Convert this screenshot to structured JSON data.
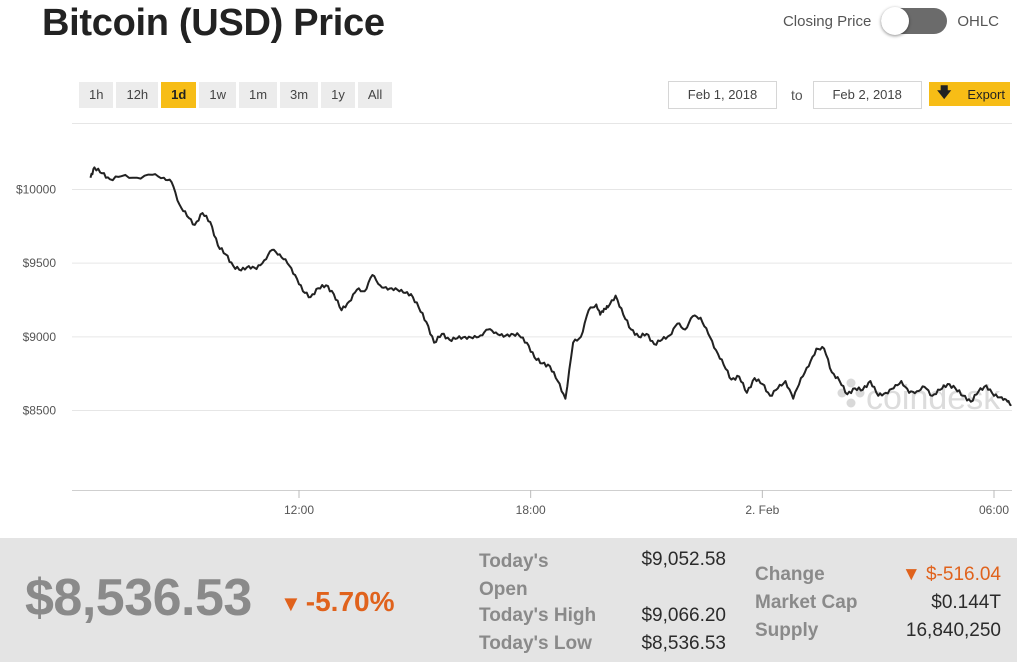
{
  "page": {
    "title": "Bitcoin (USD) Price",
    "toggle": {
      "left_label": "Closing Price",
      "right_label": "OHLC"
    },
    "ranges": [
      "1h",
      "12h",
      "1d",
      "1w",
      "1m",
      "3m",
      "1y",
      "All"
    ],
    "active_range": "1d",
    "date_from": "Feb 1, 2018",
    "date_to_label": "to",
    "date_to": "Feb 2, 2018",
    "export_label": "Export",
    "watermark": "coindesk"
  },
  "colors": {
    "accent": "#f7bd16",
    "negative": "#e0621c",
    "line": "#222222",
    "toggle": "#6b6b6b"
  },
  "stats": {
    "price": "$8,536.53",
    "change_pct": "-5.70%",
    "today_open_label": "Today's Open",
    "today_open": "$9,052.58",
    "today_high_label": "Today's High",
    "today_high": "$9,066.20",
    "today_low_label": "Today's Low",
    "today_low": "$8,536.53",
    "change_label": "Change",
    "change": "$-516.04",
    "market_cap_label": "Market Cap",
    "market_cap": "$0.144T",
    "supply_label": "Supply",
    "supply": "16,840,250"
  },
  "chart_data": {
    "type": "line",
    "title": "Bitcoin (USD) Price",
    "xlabel": "",
    "ylabel": "",
    "x_unit": "hour",
    "x_ticks": [
      {
        "x": 12,
        "label": "12:00"
      },
      {
        "x": 18,
        "label": "18:00"
      },
      {
        "x": 24,
        "label": "2. Feb"
      },
      {
        "x": 30,
        "label": "06:00"
      }
    ],
    "y_ticks": [
      {
        "y": 8500,
        "label": "$8500"
      },
      {
        "y": 9000,
        "label": "$9000"
      },
      {
        "y": 9500,
        "label": "$9500"
      },
      {
        "y": 10000,
        "label": "$10000"
      }
    ],
    "xlim": [
      6.6,
      30.45
    ],
    "ylim": [
      8000,
      10500
    ],
    "grid": true,
    "series": [
      {
        "x": [
          6.6,
          6.7,
          6.9,
          7.1,
          7.4,
          7.8,
          8.2,
          8.5,
          8.7,
          8.9,
          9.1,
          9.3,
          9.5,
          9.7,
          9.9,
          10.1,
          10.3,
          10.5,
          10.7,
          10.9,
          11.1,
          11.3,
          11.5,
          11.7,
          11.9,
          12.1,
          12.3,
          12.5,
          12.7,
          12.9,
          13.1,
          13.3,
          13.5,
          13.7,
          13.9,
          14.1,
          14.3,
          14.5,
          14.7,
          14.9,
          15.1,
          15.3,
          15.5,
          15.7,
          15.9,
          16.1,
          16.3,
          16.5,
          16.7,
          16.9,
          17.1,
          17.3,
          17.5,
          17.7,
          17.9,
          18.1,
          18.3,
          18.5,
          18.7,
          18.9,
          19.1,
          19.3,
          19.5,
          19.7,
          19.8,
          19.9,
          20.0,
          20.2,
          20.4,
          20.6,
          20.8,
          21.0,
          21.2,
          21.4,
          21.6,
          21.8,
          22.0,
          22.2,
          22.4,
          22.6,
          22.8,
          23.0,
          23.2,
          23.4,
          23.6,
          23.8,
          24.0,
          24.2,
          24.4,
          24.6,
          24.8,
          25.0,
          25.2,
          25.4,
          25.6,
          25.8,
          26.0,
          26.2,
          26.4,
          26.6,
          26.8,
          27.0,
          27.2,
          27.4,
          27.6,
          27.8,
          28.0,
          28.2,
          28.4,
          28.6,
          28.8,
          29.0,
          29.2,
          29.4,
          29.6,
          29.8,
          30.0,
          30.2,
          30.35,
          30.45
        ],
        "y": [
          10080,
          10150,
          10110,
          10070,
          10090,
          10080,
          10100,
          10080,
          10050,
          9900,
          9820,
          9760,
          9840,
          9780,
          9620,
          9560,
          9480,
          9450,
          9480,
          9460,
          9520,
          9590,
          9560,
          9500,
          9420,
          9310,
          9270,
          9330,
          9350,
          9290,
          9180,
          9240,
          9320,
          9310,
          9420,
          9350,
          9320,
          9330,
          9300,
          9290,
          9200,
          9100,
          8960,
          9020,
          8980,
          8990,
          9000,
          8990,
          9010,
          9050,
          9030,
          9000,
          9020,
          9010,
          8960,
          8860,
          8820,
          8800,
          8700,
          8580,
          8960,
          9000,
          9180,
          9220,
          9150,
          9190,
          9200,
          9280,
          9150,
          9050,
          9000,
          9020,
          8950,
          8980,
          9010,
          9090,
          9050,
          9140,
          9130,
          9020,
          8910,
          8810,
          8710,
          8730,
          8620,
          8720,
          8680,
          8600,
          8650,
          8700,
          8580,
          8720,
          8800,
          8920,
          8920,
          8760,
          8700,
          8610,
          8650,
          8640,
          8700,
          8600,
          8620,
          8650,
          8700,
          8620,
          8630,
          8660,
          8600,
          8640,
          8680,
          8650,
          8600,
          8560,
          8630,
          8670,
          8600,
          8590,
          8560,
          8540
        ]
      }
    ]
  }
}
